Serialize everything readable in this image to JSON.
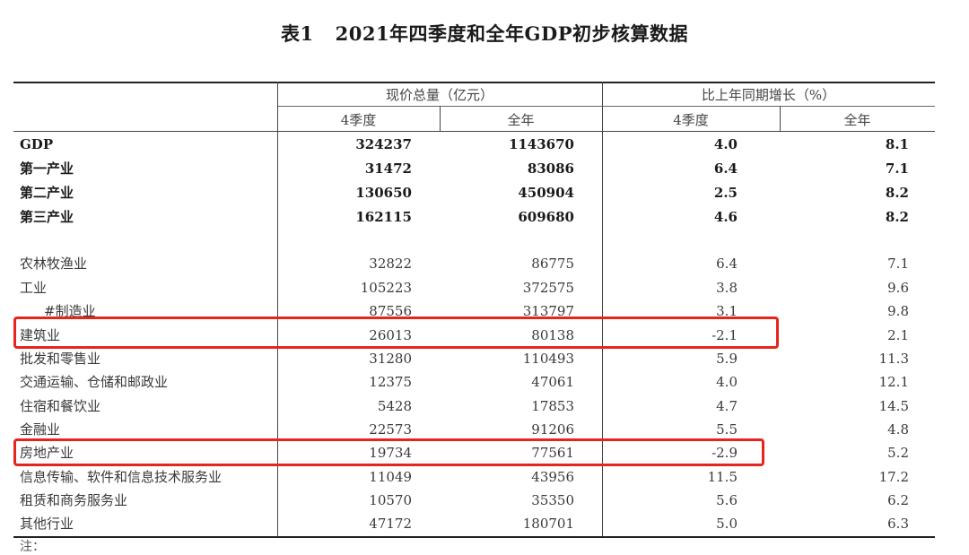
{
  "title": {
    "table_num": "表1",
    "text": "2021年四季度和全年GDP初步核算数据"
  },
  "headers": {
    "group_value": "现价总量（亿元）",
    "group_growth": "比上年同期增长（%）",
    "q4_a": "4季度",
    "year_a": "全年",
    "q4_b": "4季度",
    "year_b": "全年"
  },
  "rows": [
    {
      "name": "GDP",
      "q4_value": "324237",
      "year_value": "1143670",
      "q4_growth": "4.0",
      "year_growth": "8.1",
      "bold": true
    },
    {
      "name": "第一产业",
      "q4_value": "31472",
      "year_value": "83086",
      "q4_growth": "6.4",
      "year_growth": "7.1",
      "bold": true
    },
    {
      "name": "第二产业",
      "q4_value": "130650",
      "year_value": "450904",
      "q4_growth": "2.5",
      "year_growth": "8.2",
      "bold": true
    },
    {
      "name": "第三产业",
      "q4_value": "162115",
      "year_value": "609680",
      "q4_growth": "4.6",
      "year_growth": "8.2",
      "bold": true
    },
    {
      "name": "农林牧渔业",
      "q4_value": "32822",
      "year_value": "86775",
      "q4_growth": "6.4",
      "year_growth": "7.1"
    },
    {
      "name": "工业",
      "q4_value": "105223",
      "year_value": "372575",
      "q4_growth": "3.8",
      "year_growth": "9.6"
    },
    {
      "name": "#制造业",
      "q4_value": "87556",
      "year_value": "313797",
      "q4_growth": "3.1",
      "year_growth": "9.8",
      "indent": true
    },
    {
      "name": "建筑业",
      "q4_value": "26013",
      "year_value": "80138",
      "q4_growth": "-2.1",
      "year_growth": "2.1",
      "highlight": true
    },
    {
      "name": "批发和零售业",
      "q4_value": "31280",
      "year_value": "110493",
      "q4_growth": "5.9",
      "year_growth": "11.3"
    },
    {
      "name": "交通运输、仓储和邮政业",
      "q4_value": "12375",
      "year_value": "47061",
      "q4_growth": "4.0",
      "year_growth": "12.1"
    },
    {
      "name": "住宿和餐饮业",
      "q4_value": "5428",
      "year_value": "17853",
      "q4_growth": "4.7",
      "year_growth": "14.5"
    },
    {
      "name": "金融业",
      "q4_value": "22573",
      "year_value": "91206",
      "q4_growth": "5.5",
      "year_growth": "4.8"
    },
    {
      "name": "房地产业",
      "q4_value": "19734",
      "year_value": "77561",
      "q4_growth": "-2.9",
      "year_growth": "5.2",
      "highlight": true
    },
    {
      "name": "信息传输、软件和信息技术服务业",
      "q4_value": "11049",
      "year_value": "43956",
      "q4_growth": "11.5",
      "year_growth": "17.2"
    },
    {
      "name": "租赁和商务服务业",
      "q4_value": "10570",
      "year_value": "35350",
      "q4_growth": "5.6",
      "year_growth": "6.2"
    },
    {
      "name": "其他行业",
      "q4_value": "47172",
      "year_value": "180701",
      "q4_growth": "5.0",
      "year_growth": "6.3"
    }
  ],
  "note": "注：",
  "colors": {
    "highlight_border": "#e8251c"
  }
}
